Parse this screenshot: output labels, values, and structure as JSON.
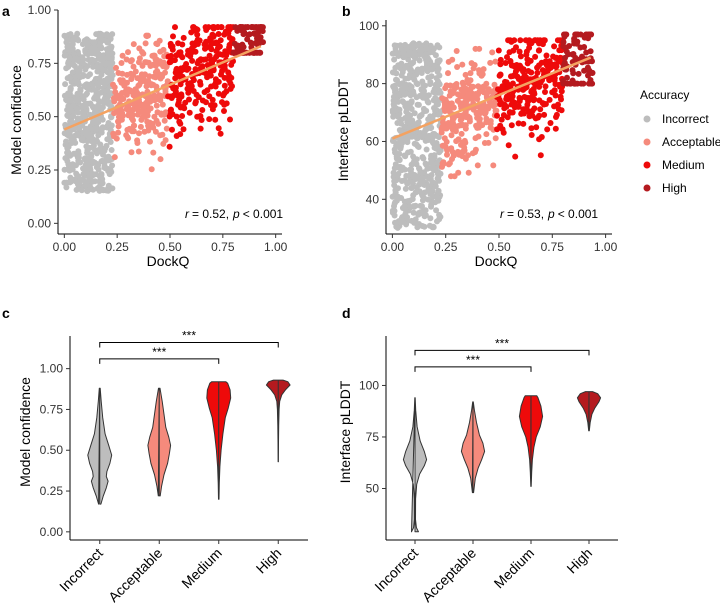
{
  "colors": {
    "incorrect": "#bdbdbd",
    "acceptable": "#f58a7c",
    "medium": "#ee0a0a",
    "high": "#b41a1f",
    "fit_line": "#f4a261"
  },
  "legend": {
    "title": "Accuracy",
    "items": [
      {
        "label": "Incorrect",
        "key": "incorrect"
      },
      {
        "label": "Acceptable",
        "key": "acceptable"
      },
      {
        "label": "Medium",
        "key": "medium"
      },
      {
        "label": "High",
        "key": "high"
      }
    ]
  },
  "chart_data": [
    {
      "panel": "a",
      "type": "scatter",
      "xlabel": "DockQ",
      "ylabel": "Model confidence",
      "xlim": [
        -0.03,
        1.03
      ],
      "ylim": [
        -0.05,
        1.0
      ],
      "xticks": [
        0.0,
        0.25,
        0.5,
        0.75,
        1.0
      ],
      "xtick_labels": [
        "0.00",
        "0.25",
        "0.50",
        "0.75",
        "1.00"
      ],
      "yticks": [
        0.0,
        0.25,
        0.5,
        0.75,
        1.0
      ],
      "ytick_labels": [
        "0.00",
        "0.25",
        "0.50",
        "0.75",
        "1.00"
      ],
      "annotation": "r = 0.52, p < 0.001",
      "annotation_r": "r",
      "annotation_eq": "= 0.52,",
      "annotation_p": "p",
      "annotation_rest": "< 0.001",
      "fit_line": {
        "x": [
          0.0,
          0.93
        ],
        "y": [
          0.44,
          0.83
        ]
      },
      "series": [
        {
          "name": "Incorrect",
          "key": "incorrect",
          "x_range": [
            0.0,
            0.23
          ],
          "y_range": [
            0.15,
            0.89
          ],
          "n": 600
        },
        {
          "name": "Acceptable",
          "key": "acceptable",
          "x_range": [
            0.23,
            0.49
          ],
          "y_range": [
            0.22,
            0.88
          ],
          "n": 260
        },
        {
          "name": "Medium",
          "key": "medium",
          "x_range": [
            0.49,
            0.8
          ],
          "y_range": [
            0.2,
            0.92
          ],
          "n": 260
        },
        {
          "name": "High",
          "key": "high",
          "x_range": [
            0.8,
            0.94
          ],
          "y_range": [
            0.8,
            0.92
          ],
          "n": 90
        }
      ]
    },
    {
      "panel": "b",
      "type": "scatter",
      "xlabel": "DockQ",
      "ylabel": "Interface pLDDT",
      "xlim": [
        -0.03,
        1.03
      ],
      "ylim": [
        28,
        102
      ],
      "xticks": [
        0.0,
        0.25,
        0.5,
        0.75,
        1.0
      ],
      "xtick_labels": [
        "0.00",
        "0.25",
        "0.50",
        "0.75",
        "1.00"
      ],
      "yticks": [
        40,
        60,
        80,
        100
      ],
      "ytick_labels": [
        "40",
        "60",
        "80",
        "100"
      ],
      "annotation": "r = 0.53, p < 0.001",
      "annotation_r": "r",
      "annotation_eq": "= 0.53,",
      "annotation_p": "p",
      "annotation_rest": "< 0.001",
      "fit_line": {
        "x": [
          0.0,
          0.93
        ],
        "y": [
          61,
          89
        ]
      },
      "series": [
        {
          "name": "Incorrect",
          "key": "incorrect",
          "x_range": [
            0.0,
            0.23
          ],
          "y_range": [
            30,
            94
          ],
          "n": 600
        },
        {
          "name": "Acceptable",
          "key": "acceptable",
          "x_range": [
            0.23,
            0.49
          ],
          "y_range": [
            48,
            92
          ],
          "n": 260
        },
        {
          "name": "Medium",
          "key": "medium",
          "x_range": [
            0.49,
            0.8
          ],
          "y_range": [
            52,
            95
          ],
          "n": 260
        },
        {
          "name": "High",
          "key": "high",
          "x_range": [
            0.8,
            0.94
          ],
          "y_range": [
            80,
            97
          ],
          "n": 90
        }
      ]
    },
    {
      "panel": "c",
      "type": "violin",
      "ylabel": "Model confidence",
      "categories": [
        "Incorrect",
        "Acceptable",
        "Medium",
        "High"
      ],
      "ylim": [
        -0.05,
        1.2
      ],
      "yticks": [
        0.0,
        0.25,
        0.5,
        0.75,
        1.0
      ],
      "ytick_labels": [
        "0.00",
        "0.25",
        "0.50",
        "0.75",
        "1.00"
      ],
      "significance": [
        {
          "from": 0,
          "to": 2,
          "label": "***",
          "y": 1.06
        },
        {
          "from": 0,
          "to": 3,
          "label": "***",
          "y": 1.16
        }
      ],
      "violins": [
        {
          "key": "incorrect",
          "min": 0.17,
          "max": 0.88,
          "profile": [
            [
              0.17,
              0.1
            ],
            [
              0.22,
              0.3
            ],
            [
              0.27,
              0.55
            ],
            [
              0.31,
              0.7
            ],
            [
              0.34,
              0.55
            ],
            [
              0.37,
              0.6
            ],
            [
              0.42,
              0.85
            ],
            [
              0.47,
              1.0
            ],
            [
              0.53,
              0.75
            ],
            [
              0.6,
              0.45
            ],
            [
              0.7,
              0.25
            ],
            [
              0.8,
              0.12
            ],
            [
              0.88,
              0.04
            ]
          ]
        },
        {
          "key": "acceptable",
          "min": 0.22,
          "max": 0.88,
          "profile": [
            [
              0.22,
              0.08
            ],
            [
              0.28,
              0.2
            ],
            [
              0.35,
              0.4
            ],
            [
              0.42,
              0.7
            ],
            [
              0.48,
              0.85
            ],
            [
              0.53,
              0.95
            ],
            [
              0.58,
              0.8
            ],
            [
              0.64,
              0.55
            ],
            [
              0.72,
              0.4
            ],
            [
              0.8,
              0.25
            ],
            [
              0.88,
              0.06
            ]
          ]
        },
        {
          "key": "medium",
          "min": 0.2,
          "max": 0.92,
          "profile": [
            [
              0.2,
              0.02
            ],
            [
              0.3,
              0.05
            ],
            [
              0.4,
              0.1
            ],
            [
              0.5,
              0.2
            ],
            [
              0.6,
              0.35
            ],
            [
              0.7,
              0.55
            ],
            [
              0.76,
              0.8
            ],
            [
              0.82,
              1.0
            ],
            [
              0.87,
              0.95
            ],
            [
              0.91,
              0.75
            ],
            [
              0.92,
              0.6
            ]
          ]
        },
        {
          "key": "high",
          "min": 0.43,
          "max": 0.93,
          "profile": [
            [
              0.43,
              0.01
            ],
            [
              0.55,
              0.02
            ],
            [
              0.65,
              0.04
            ],
            [
              0.75,
              0.07
            ],
            [
              0.8,
              0.12
            ],
            [
              0.84,
              0.3
            ],
            [
              0.87,
              0.6
            ],
            [
              0.9,
              1.0
            ],
            [
              0.92,
              0.8
            ],
            [
              0.93,
              0.4
            ]
          ]
        }
      ]
    },
    {
      "panel": "d",
      "type": "violin",
      "ylabel": "Interface pLDDT",
      "categories": [
        "Incorrect",
        "Acceptable",
        "Medium",
        "High"
      ],
      "ylim": [
        25,
        124
      ],
      "yticks": [
        50,
        75,
        100
      ],
      "ytick_labels": [
        "50",
        "75",
        "100"
      ],
      "significance": [
        {
          "from": 0,
          "to": 2,
          "label": "***",
          "y": 109
        },
        {
          "from": 0,
          "to": 3,
          "label": "***",
          "y": 117
        }
      ],
      "violins": [
        {
          "key": "incorrect",
          "min": 29,
          "max": 94,
          "profile": [
            [
              29,
              0.3
            ],
            [
              31,
              0.12
            ],
            [
              35,
              0.04
            ],
            [
              45,
              0.05
            ],
            [
              52,
              0.15
            ],
            [
              57,
              0.4
            ],
            [
              61,
              0.8
            ],
            [
              64,
              1.0
            ],
            [
              68,
              0.8
            ],
            [
              73,
              0.45
            ],
            [
              80,
              0.18
            ],
            [
              88,
              0.06
            ],
            [
              94,
              0.02
            ]
          ]
        },
        {
          "key": "acceptable",
          "min": 48,
          "max": 92,
          "profile": [
            [
              48,
              0.05
            ],
            [
              55,
              0.2
            ],
            [
              60,
              0.45
            ],
            [
              64,
              0.75
            ],
            [
              68,
              1.0
            ],
            [
              72,
              0.85
            ],
            [
              76,
              0.55
            ],
            [
              82,
              0.3
            ],
            [
              88,
              0.12
            ],
            [
              92,
              0.03
            ]
          ]
        },
        {
          "key": "medium",
          "min": 51,
          "max": 95,
          "profile": [
            [
              51,
              0.02
            ],
            [
              58,
              0.06
            ],
            [
              64,
              0.12
            ],
            [
              70,
              0.25
            ],
            [
              75,
              0.45
            ],
            [
              80,
              0.8
            ],
            [
              85,
              1.0
            ],
            [
              90,
              0.85
            ],
            [
              94,
              0.6
            ],
            [
              95,
              0.5
            ]
          ]
        },
        {
          "key": "high",
          "min": 78,
          "max": 97,
          "profile": [
            [
              78,
              0.03
            ],
            [
              82,
              0.1
            ],
            [
              86,
              0.25
            ],
            [
              89,
              0.5
            ],
            [
              92,
              0.85
            ],
            [
              94,
              1.0
            ],
            [
              96,
              0.75
            ],
            [
              97,
              0.3
            ]
          ]
        }
      ]
    }
  ]
}
